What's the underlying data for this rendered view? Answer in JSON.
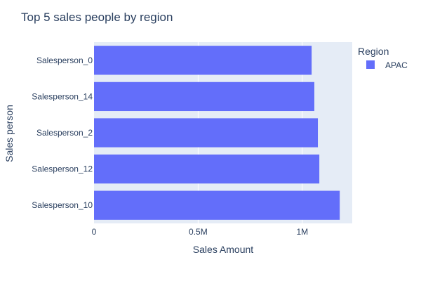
{
  "chart_data": {
    "type": "bar",
    "orientation": "horizontal",
    "title": "Top 5 sales people by region",
    "xlabel": "Sales Amount",
    "ylabel": "Sales person",
    "categories": [
      "Salesperson_0",
      "Salesperson_14",
      "Salesperson_2",
      "Salesperson_12",
      "Salesperson_10"
    ],
    "series": [
      {
        "name": "APAC",
        "values": [
          1045000,
          1058000,
          1075000,
          1082000,
          1180000
        ]
      }
    ],
    "xlim": [
      0,
      1240000
    ],
    "xticks": [
      0,
      500000,
      1000000
    ],
    "xtick_labels": [
      "0",
      "0.5M",
      "1M"
    ],
    "legend": {
      "title": "Region",
      "position": "top-right"
    },
    "colors": {
      "bar": "#636efa",
      "plot_bg": "#e5ecf6",
      "grid": "#ffffff",
      "text": "#2a3f5f"
    },
    "grid": true
  }
}
